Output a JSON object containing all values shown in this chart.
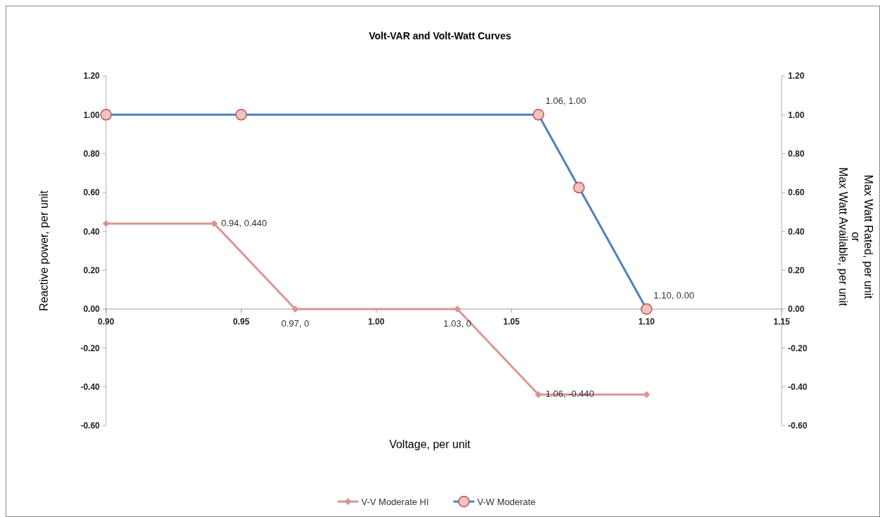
{
  "chart_data": {
    "type": "line",
    "title": "Volt-VAR and Volt-Watt Curves",
    "xlabel": "Voltage, per unit",
    "ylabel": "Reactive power, per unit",
    "y2label": "Max Watt Rated, per unit\nor\nMax Watt Available, per unit",
    "xlim": [
      0.9,
      1.15
    ],
    "xticks": [
      {
        "value": 0.9,
        "label": "0.90"
      },
      {
        "value": 0.95,
        "label": "0.95"
      },
      {
        "value": 1.0,
        "label": "1.00"
      },
      {
        "value": 1.05,
        "label": "1.05"
      },
      {
        "value": 1.1,
        "label": "1.10"
      },
      {
        "value": 1.15,
        "label": "1.15"
      }
    ],
    "ylim": [
      -0.6,
      1.2
    ],
    "yticks": [
      {
        "value": -0.6,
        "label": "-0.60"
      },
      {
        "value": -0.4,
        "label": "-0.40"
      },
      {
        "value": -0.2,
        "label": "-0.20"
      },
      {
        "value": 0,
        "label": "0.00"
      },
      {
        "value": 0.2,
        "label": "0.20"
      },
      {
        "value": 0.4,
        "label": "0.40"
      },
      {
        "value": 0.6,
        "label": "0.60"
      },
      {
        "value": 0.8,
        "label": "0.80"
      },
      {
        "value": 1.0,
        "label": "1.00"
      },
      {
        "value": 1.2,
        "label": "1.20"
      }
    ],
    "y2lim": [
      -0.6,
      1.2
    ],
    "y2ticks": [
      {
        "value": -0.6,
        "label": "-0.60"
      },
      {
        "value": -0.4,
        "label": "-0.40"
      },
      {
        "value": -0.2,
        "label": "-0.20"
      },
      {
        "value": 0,
        "label": "0.00"
      },
      {
        "value": 0.2,
        "label": "0.20"
      },
      {
        "value": 0.4,
        "label": "0.40"
      },
      {
        "value": 0.6,
        "label": "0.60"
      },
      {
        "value": 0.8,
        "label": "0.80"
      },
      {
        "value": 1.0,
        "label": "1.00"
      },
      {
        "value": 1.2,
        "label": "1.20"
      }
    ],
    "series": [
      {
        "name": "V-V Moderate HI",
        "color": "#d99694",
        "marker": "diamond",
        "x": [
          0.9,
          0.94,
          0.97,
          1.03,
          1.06,
          1.1
        ],
        "values": [
          0.44,
          0.44,
          0,
          0,
          -0.44,
          -0.44
        ]
      },
      {
        "name": "V-W Moderate",
        "color": "#4f81bd",
        "marker": "circle",
        "x": [
          0.9,
          0.95,
          1.06,
          1.075,
          1.1
        ],
        "values": [
          1,
          1,
          1,
          0.625,
          0
        ]
      }
    ],
    "annotations": [
      {
        "text": "0.94, 0.440",
        "x": 0.94,
        "y": 0.44
      },
      {
        "text": "0.97, 0",
        "x": 0.97,
        "y": 0
      },
      {
        "text": "1.03, 0",
        "x": 1.03,
        "y": 0
      },
      {
        "text": "1.06, -0.440",
        "x": 1.06,
        "y": -0.44
      },
      {
        "text": "1.06, 1.00",
        "x": 1.06,
        "y": 1
      },
      {
        "text": "1.10, 0.00",
        "x": 1.1,
        "y": 0
      }
    ],
    "legend": "bottom",
    "grid": false
  }
}
